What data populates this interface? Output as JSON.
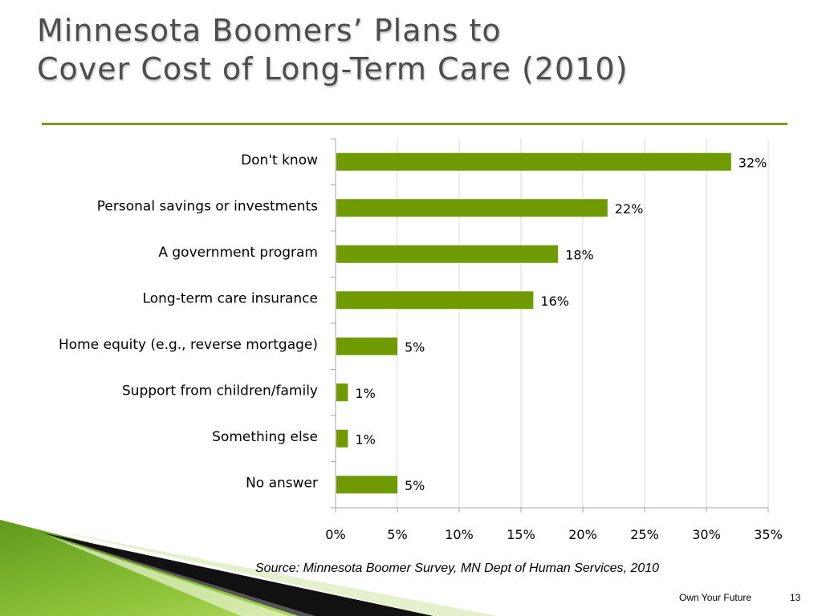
{
  "slide": {
    "title_line1": "Minnesota Boomers’ Plans to",
    "title_line2": "Cover Cost of Long-Term Care (2010)",
    "source": "Source: Minnesota Boomer Survey, MN Dept of Human Services, 2010",
    "footer": "Own Your Future",
    "page_number": "13",
    "accent_color": "#6f9a00"
  },
  "chart_data": {
    "type": "bar",
    "orientation": "horizontal",
    "categories": [
      "Don't know",
      "Personal savings or investments",
      "A government program",
      "Long-term care insurance",
      "Home equity (e.g., reverse mortgage)",
      "Support from children/family",
      "Something else",
      "No answer"
    ],
    "values": [
      32,
      22,
      18,
      16,
      5,
      1,
      1,
      5
    ],
    "value_labels": [
      "32%",
      "22%",
      "18%",
      "16%",
      "5%",
      "1%",
      "1%",
      "5%"
    ],
    "xlim": [
      0,
      35
    ],
    "xticks": [
      0,
      5,
      10,
      15,
      20,
      25,
      30,
      35
    ],
    "xtick_labels": [
      "0%",
      "5%",
      "10%",
      "15%",
      "20%",
      "25%",
      "30%",
      "35%"
    ],
    "grid": true,
    "legend": "none",
    "bar_color": "#6f9a00",
    "grid_color": "#d9d9d9"
  }
}
